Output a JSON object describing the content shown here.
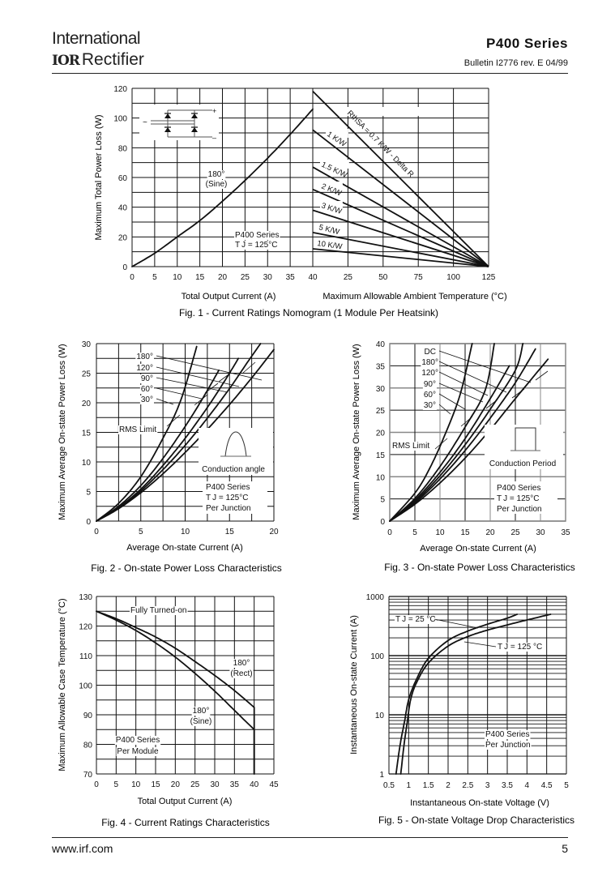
{
  "header": {
    "logo_line1": "International",
    "logo_mark": "IOR",
    "logo_line2": "Rectifier",
    "series": "P400  Series",
    "bulletin": "Bulletin I2776  rev. E  04/99"
  },
  "footer": {
    "url": "www.irf.com",
    "page": "5"
  },
  "chart_data": [
    {
      "id": "fig1",
      "type": "line",
      "title": "Fig. 1 - Current Ratings Nomogram (1 Module Per Heatsink)",
      "left_panel": {
        "xlabel": "Total Output Current (A)",
        "ylabel": "Maximum Total Power Loss (W)",
        "xlim": [
          0,
          40
        ],
        "ylim": [
          0,
          120
        ],
        "xticks": [
          "0",
          "5",
          "10",
          "15",
          "20",
          "25",
          "30",
          "35",
          "40"
        ],
        "yticks": [
          "0",
          "20",
          "40",
          "60",
          "80",
          "100",
          "120"
        ],
        "series": [
          {
            "name": "180° (Sine)",
            "x": [
              0,
              5,
              10,
              15,
              20,
              25,
              30,
              35,
              40
            ],
            "y": [
              0,
              9,
              20,
              31,
              44,
              58,
              73,
              89,
              106
            ]
          }
        ],
        "annotations": [
          "180°",
          "(Sine)",
          "P400 Series",
          "TJ = 125°C"
        ],
        "inset": "bridge-rectifier-circuit"
      },
      "right_panel": {
        "xlabel": "Maximum Allowable Ambient Temperature (°C)",
        "xlim": [
          0,
          125
        ],
        "xticks": [
          "25",
          "50",
          "75",
          "100",
          "125"
        ],
        "series": [
          {
            "name": "RthSA = 0.7 K/W - Delta R",
            "start_w": 118,
            "end_c": 125
          },
          {
            "name": "1 K/W",
            "start_w": 92,
            "end_c": 125
          },
          {
            "name": "1.5 K/W",
            "start_w": 67,
            "end_c": 125
          },
          {
            "name": "2 K/W",
            "start_w": 52,
            "end_c": 125
          },
          {
            "name": "3 K/W",
            "start_w": 38,
            "end_c": 125
          },
          {
            "name": "5 K/W",
            "start_w": 23,
            "end_c": 125
          },
          {
            "name": "10 K/W",
            "start_w": 12,
            "end_c": 125
          }
        ]
      },
      "grid": true
    },
    {
      "id": "fig2",
      "type": "line",
      "title": "Fig. 2 - On-state Power Loss Characteristics",
      "xlabel": "Average On-state Current (A)",
      "ylabel": "Maximum Average On-state Power Loss (W)",
      "xlim": [
        0,
        20
      ],
      "ylim": [
        0,
        30
      ],
      "xticks": [
        "0",
        "5",
        "10",
        "15",
        "20"
      ],
      "yticks": [
        "0",
        "5",
        "10",
        "15",
        "20",
        "25",
        "30"
      ],
      "series": [
        {
          "name": "180°",
          "x": [
            0,
            2.5,
            5,
            7.5,
            10,
            12.5,
            15,
            17.5,
            20
          ],
          "y": [
            0,
            2.1,
            4.8,
            8.0,
            11.6,
            15.5,
            19.7,
            24.2,
            29.0
          ]
        },
        {
          "name": "120°",
          "x": [
            0,
            2.5,
            5,
            7.5,
            10,
            12.5,
            15,
            17,
            18.5
          ],
          "y": [
            0,
            2.2,
            5.1,
            8.7,
            12.8,
            17.4,
            22.4,
            26.8,
            30.0
          ]
        },
        {
          "name": "90°",
          "x": [
            0,
            2.5,
            5,
            7.5,
            10,
            12.5,
            14.5,
            16
          ],
          "y": [
            0,
            2.3,
            5.4,
            9.4,
            14.0,
            19.2,
            23.8,
            27.5
          ]
        },
        {
          "name": "60°",
          "x": [
            0,
            2.5,
            5,
            7.5,
            10,
            12,
            13.8
          ],
          "y": [
            0,
            2.5,
            6.0,
            10.6,
            16.0,
            20.8,
            25.5
          ]
        },
        {
          "name": "30°",
          "x": [
            0,
            2.5,
            5,
            7.5,
            9.5,
            11.3
          ],
          "y": [
            0,
            3.0,
            7.5,
            14.0,
            20.4,
            29.5
          ]
        }
      ],
      "rms_limit": "RMS Limit",
      "annotations": [
        "Conduction angle",
        "P400 Series",
        "TJ = 125°C",
        "Per Junction"
      ],
      "grid": true
    },
    {
      "id": "fig3",
      "type": "line",
      "title": "Fig. 3 - On-state Power Loss Characteristics",
      "xlabel": "Average On-state Current (A)",
      "ylabel": "Maximum Average On-state Power Loss (W)",
      "xlim": [
        0,
        35
      ],
      "ylim": [
        0,
        40
      ],
      "xticks": [
        "0",
        "5",
        "10",
        "15",
        "20",
        "25",
        "30",
        "35"
      ],
      "yticks": [
        "0",
        "5",
        "10",
        "15",
        "20",
        "25",
        "30",
        "35",
        "40"
      ],
      "series": [
        {
          "name": "DC",
          "x": [
            0,
            5,
            10,
            15,
            20,
            25,
            31.5
          ],
          "y": [
            0,
            3.8,
            8.6,
            14.2,
            20.6,
            27.6,
            36.5
          ]
        },
        {
          "name": "180°",
          "x": [
            0,
            5,
            10,
            15,
            20,
            25,
            29
          ],
          "y": [
            0,
            4.1,
            9.5,
            15.9,
            23.2,
            31.2,
            38.8
          ]
        },
        {
          "name": "120°",
          "x": [
            0,
            5,
            10,
            15,
            20,
            25,
            26.5
          ],
          "y": [
            0,
            4.4,
            10.2,
            17.2,
            25.2,
            34.0,
            40
          ]
        },
        {
          "name": "90°",
          "x": [
            0,
            5,
            10,
            15,
            20,
            23.8
          ],
          "y": [
            0,
            4.7,
            11.0,
            18.6,
            27.6,
            35.0
          ]
        },
        {
          "name": "60°",
          "x": [
            0,
            5,
            10,
            15,
            19,
            20.8
          ],
          "y": [
            0,
            5.1,
            12.3,
            21.2,
            29.5,
            40
          ]
        },
        {
          "name": "30°",
          "x": [
            0,
            5,
            8,
            11,
            14,
            16.4
          ],
          "y": [
            0,
            6.3,
            12.0,
            19.5,
            28.5,
            40
          ]
        }
      ],
      "rms_limit": "RMS Limit",
      "annotations": [
        "Conduction Period",
        "P400 Series",
        "TJ = 125°C",
        "Per Junction"
      ],
      "grid": true
    },
    {
      "id": "fig4",
      "type": "line",
      "title": "Fig. 4 - Current Ratings Characteristics",
      "xlabel": "Total Output Current (A)",
      "ylabel": "Maximum Allowable Case Temperature (°C)",
      "xlim": [
        0,
        45
      ],
      "ylim": [
        70,
        130
      ],
      "xticks": [
        "0",
        "5",
        "10",
        "15",
        "20",
        "25",
        "30",
        "35",
        "40",
        "45"
      ],
      "yticks": [
        "70",
        "80",
        "90",
        "100",
        "110",
        "120",
        "130"
      ],
      "series": [
        {
          "name": "180° (Rect)",
          "x": [
            0,
            5,
            10,
            15,
            20,
            25,
            30,
            35,
            40,
            40
          ],
          "y": [
            125,
            122.5,
            119.5,
            116.3,
            112.5,
            108.0,
            103.3,
            98.2,
            92.5,
            70
          ]
        },
        {
          "name": "180° (Sine)",
          "x": [
            0,
            5,
            10,
            15,
            20,
            25,
            30,
            35,
            40,
            40
          ],
          "y": [
            125,
            122,
            118.5,
            114.3,
            109.5,
            104.0,
            98.0,
            91.5,
            85,
            70
          ]
        }
      ],
      "annotations": [
        "Fully Turned-on",
        "180°",
        "(Rect)",
        "180°",
        "(Sine)",
        "P400 Series",
        "Per Module"
      ],
      "grid": true
    },
    {
      "id": "fig5",
      "type": "line",
      "title": "Fig. 5 - On-state Voltage Drop Characteristics",
      "xlabel": "Instantaneous On-state Voltage (V)",
      "ylabel": "Instantaneous On-state Current (A)",
      "xlim": [
        0.5,
        5
      ],
      "ylim": [
        1,
        1000
      ],
      "yscale": "log",
      "xticks": [
        "0.5",
        "1",
        "1.5",
        "2",
        "2.5",
        "3",
        "3.5",
        "4",
        "4.5",
        "5"
      ],
      "yticks": [
        "1",
        "10",
        "100",
        "1000"
      ],
      "series": [
        {
          "name": "TJ = 25 °C",
          "x": [
            0.68,
            0.78,
            0.9,
            1.0,
            1.2,
            1.5,
            2.0,
            2.5,
            3.0,
            3.5,
            3.75
          ],
          "y": [
            1,
            3,
            8,
            18,
            40,
            90,
            180,
            260,
            340,
            430,
            500
          ]
        },
        {
          "name": "TJ = 125 °C",
          "x": [
            0.8,
            0.88,
            0.97,
            1.05,
            1.2,
            1.5,
            2.0,
            2.5,
            3.0,
            3.5,
            4.0,
            4.6
          ],
          "y": [
            1,
            3,
            8,
            18,
            35,
            75,
            145,
            210,
            270,
            330,
            400,
            500
          ]
        }
      ],
      "annotations": [
        "P400 Series",
        "Per Junction"
      ],
      "grid": true
    }
  ]
}
